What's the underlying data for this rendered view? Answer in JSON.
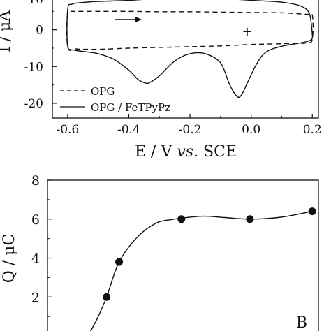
{
  "chart_data": [
    {
      "type": "line",
      "panel": "A",
      "xlabel_main": "E / V ",
      "xlabel_italic": "vs.",
      "xlabel_tail": " SCE",
      "ylabel": "I / μA",
      "xlim": [
        -0.65,
        0.22
      ],
      "ylim": [
        -24,
        10
      ],
      "xticks": [
        -0.6,
        -0.4,
        -0.2,
        0.0,
        0.2
      ],
      "xtick_labels": [
        "-0.6",
        "-0.4",
        "-0.2",
        "0.0",
        "0.2"
      ],
      "yticks": [
        -20,
        -10,
        0
      ],
      "ytick_labels": [
        "-20",
        "-10",
        "0"
      ],
      "top_partial_label": "10",
      "legend_position": "lower-left",
      "annotations": [
        "+"
      ],
      "series": [
        {
          "name": "OPG",
          "style": "dashed",
          "x": [
            -0.575,
            -0.6,
            -0.6,
            -0.575,
            -0.5,
            -0.4,
            -0.3,
            -0.2,
            -0.1,
            0.0,
            0.1,
            0.18,
            0.2,
            0.2,
            0.18,
            0.1,
            0.0,
            -0.1,
            -0.2,
            -0.3,
            -0.4,
            -0.5,
            -0.575
          ],
          "y": [
            5.0,
            4.0,
            -4.5,
            -5.2,
            -5.3,
            -5.0,
            -4.8,
            -4.6,
            -4.4,
            -4.0,
            -3.8,
            -3.6,
            -2.5,
            4.0,
            4.2,
            4.6,
            4.7,
            4.8,
            4.9,
            4.9,
            5.0,
            5.0,
            5.0
          ]
        },
        {
          "name": "OPG / FeTPyPz",
          "style": "solid",
          "x": [
            0.2,
            0.19,
            0.1,
            0.05,
            0.02,
            -0.01,
            -0.03,
            -0.045,
            -0.07,
            -0.1,
            -0.15,
            -0.2,
            -0.25,
            -0.3,
            -0.33,
            -0.345,
            -0.37,
            -0.4,
            -0.45,
            -0.5,
            -0.54,
            -0.58,
            -0.6,
            -0.6,
            -0.585,
            -0.54,
            -0.5,
            -0.4,
            -0.3,
            -0.2,
            -0.1,
            0.0,
            0.1,
            0.16,
            0.19,
            0.2
          ],
          "y": [
            -1.0,
            -3.0,
            -4.5,
            -6.0,
            -9.0,
            -14.0,
            -17.5,
            -18.2,
            -15.0,
            -9.0,
            -6.5,
            -6.5,
            -8.5,
            -12.5,
            -14.3,
            -14.5,
            -13.5,
            -11.0,
            -8.0,
            -6.5,
            -6.0,
            -5.5,
            -4.5,
            5.5,
            7.0,
            7.5,
            7.7,
            8.0,
            8.5,
            8.8,
            8.5,
            8.0,
            7.5,
            6.5,
            4.5,
            -1.0
          ]
        }
      ]
    },
    {
      "type": "scatter",
      "panel": "B",
      "panel_label": "B",
      "ylabel": "Q / μC",
      "xlim": [
        -0.65,
        0.22
      ],
      "ylim": [
        -0.25,
        8
      ],
      "yticks": [
        2,
        4,
        6,
        8
      ],
      "ytick_labels": [
        "2",
        "4",
        "6",
        "8"
      ],
      "points": {
        "x": [
          -0.46,
          -0.42,
          -0.22,
          0.0,
          0.2
        ],
        "y": [
          2.0,
          3.8,
          6.0,
          6.0,
          6.4
        ]
      },
      "fit_curve": {
        "x": [
          -0.52,
          -0.49,
          -0.46,
          -0.42,
          -0.36,
          -0.3,
          -0.25,
          -0.22,
          -0.15,
          -0.08,
          0.0,
          0.1,
          0.2
        ],
        "y": [
          0.0,
          0.9,
          2.0,
          3.8,
          5.1,
          5.8,
          5.98,
          6.05,
          6.15,
          6.08,
          6.0,
          6.1,
          6.4
        ]
      }
    }
  ]
}
